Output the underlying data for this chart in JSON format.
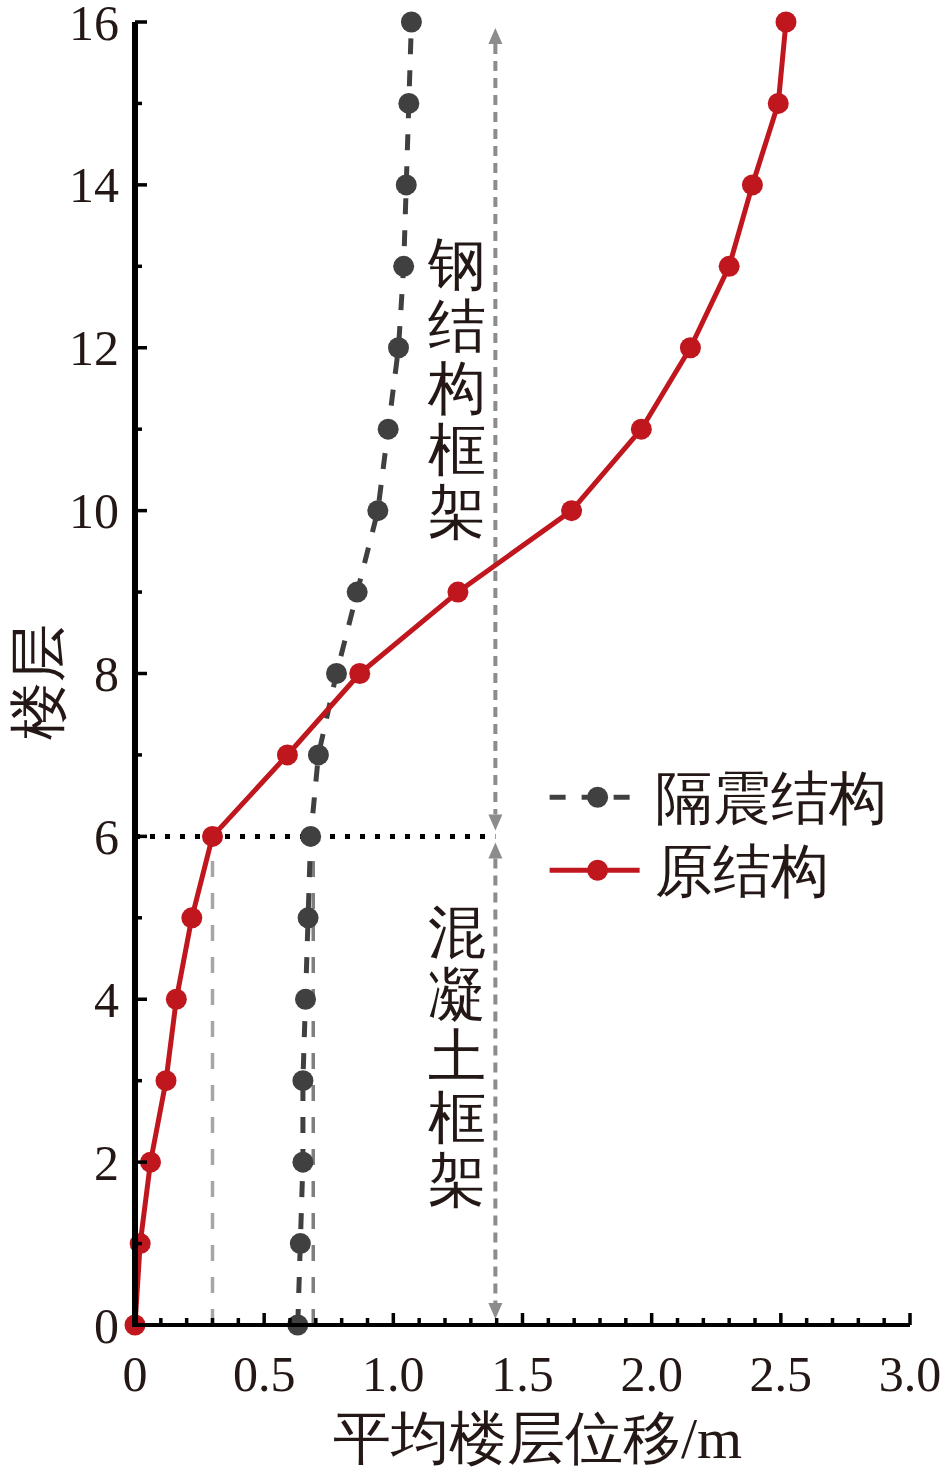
{
  "chart_data": {
    "type": "line",
    "xlabel": "平均楼层位移/m",
    "ylabel": "楼层",
    "xlim": [
      0,
      3
    ],
    "ylim": [
      0,
      16
    ],
    "xticks": [
      0,
      {
        "value": 0.1,
        "label": null
      },
      {
        "value": 0.2,
        "label": null
      },
      {
        "value": 0.3,
        "label": null
      },
      {
        "value": 0.4,
        "label": null
      },
      0.5,
      {
        "value": 0.6,
        "label": null
      },
      {
        "value": 0.7,
        "label": null
      },
      {
        "value": 0.8,
        "label": null
      },
      {
        "value": 0.9,
        "label": null
      },
      {
        "value": 1,
        "label": "1.0"
      },
      {
        "value": 1.1,
        "label": null
      },
      {
        "value": 1.2,
        "label": null
      },
      {
        "value": 1.3,
        "label": null
      },
      {
        "value": 1.4,
        "label": null
      },
      1.5,
      {
        "value": 1.6,
        "label": null
      },
      {
        "value": 1.7,
        "label": null
      },
      {
        "value": 1.8,
        "label": null
      },
      {
        "value": 1.9,
        "label": null
      },
      {
        "value": 2,
        "label": "2.0"
      },
      {
        "value": 2.1,
        "label": null
      },
      {
        "value": 2.2,
        "label": null
      },
      {
        "value": 2.3,
        "label": null
      },
      {
        "value": 2.4,
        "label": null
      },
      2.5,
      {
        "value": 2.6,
        "label": null
      },
      {
        "value": 2.7,
        "label": null
      },
      {
        "value": 2.8,
        "label": null
      },
      {
        "value": 2.9,
        "label": null
      },
      {
        "value": 3,
        "label": "3.0"
      }
    ],
    "yticks": [
      0,
      {
        "value": 1,
        "label": null
      },
      2,
      {
        "value": 3,
        "label": null
      },
      4,
      {
        "value": 5,
        "label": null
      },
      6,
      {
        "value": 7,
        "label": null
      },
      8,
      {
        "value": 9,
        "label": null
      },
      10,
      {
        "value": 11,
        "label": null
      },
      12,
      {
        "value": 13,
        "label": null
      },
      14,
      {
        "value": 15,
        "label": null
      },
      16
    ],
    "marker": "circle",
    "legend": "right",
    "series": [
      {
        "name": "隔震结构",
        "color": "#404040",
        "line_style": "dashed",
        "x": [
          0.63,
          0.64,
          0.65,
          0.65,
          0.66,
          0.67,
          0.68,
          0.71,
          0.78,
          0.86,
          0.94,
          0.98,
          1.02,
          1.04,
          1.05,
          1.06,
          1.07
        ],
        "values": [
          0,
          1,
          2,
          3,
          4,
          5,
          6,
          7,
          8,
          9,
          10,
          11,
          12,
          13,
          14,
          15,
          16
        ]
      },
      {
        "name": "原结构",
        "color": "#c0171f",
        "line_style": "solid",
        "x": [
          0,
          0.02,
          0.06,
          0.12,
          0.16,
          0.22,
          0.3,
          0.59,
          0.87,
          1.25,
          1.69,
          1.96,
          2.15,
          2.3,
          2.39,
          2.49,
          2.52
        ],
        "values": [
          0,
          1,
          2,
          3,
          4,
          5,
          6,
          7,
          8,
          9,
          10,
          11,
          12,
          13,
          14,
          15,
          16
        ]
      }
    ],
    "ref_lines": [
      {
        "axis": "y",
        "value": 6,
        "color": "#000000",
        "line_style": "dotted"
      },
      {
        "axis": "x",
        "value": 0.3,
        "color": "#a6a6a6",
        "line_style": "dashed"
      },
      {
        "axis": "x",
        "value": 0.69,
        "color": "#7f7f7f",
        "line_style": "dashed"
      }
    ],
    "annotations": [
      "钢结构框架",
      "混凝土框架"
    ]
  }
}
